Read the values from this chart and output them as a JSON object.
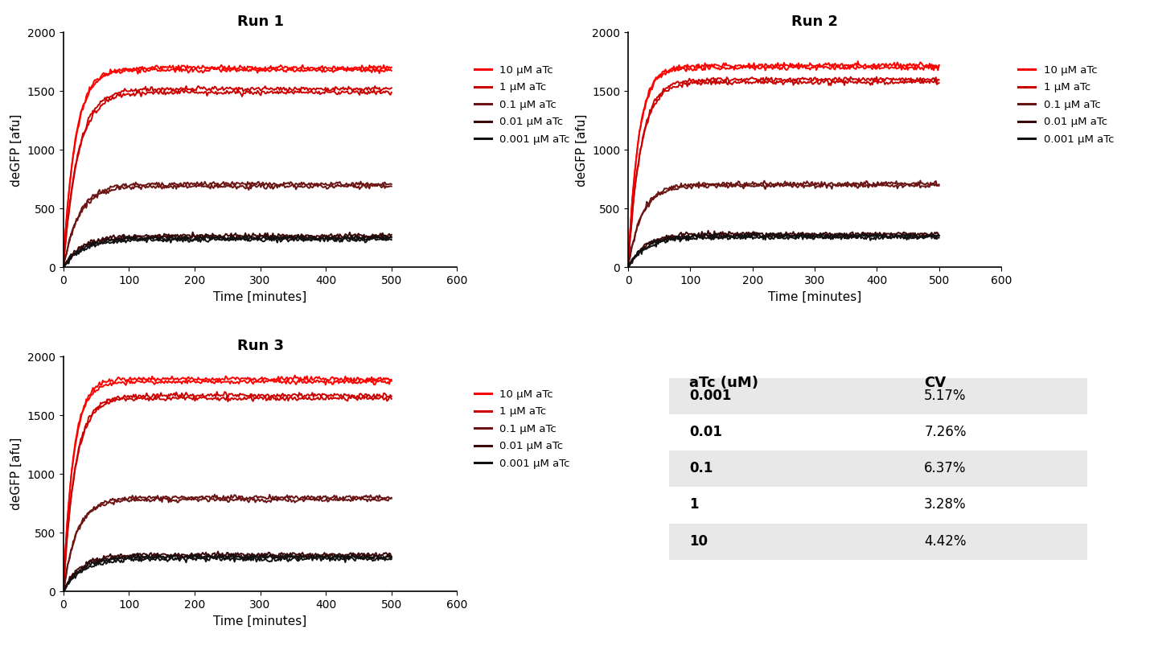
{
  "runs": {
    "Run 1": {
      "concentrations": [
        10,
        1,
        0.1,
        0.01,
        0.001
      ],
      "plateau_high": [
        1700,
        1520,
        710,
        270,
        250
      ],
      "plateau_low": [
        1680,
        1490,
        690,
        255,
        235
      ],
      "rise_k": [
        0.055,
        0.045,
        0.042,
        0.038,
        0.035
      ]
    },
    "Run 2": {
      "concentrations": [
        10,
        1,
        0.1,
        0.01,
        0.001
      ],
      "plateau_high": [
        1720,
        1600,
        710,
        285,
        270
      ],
      "plateau_low": [
        1700,
        1575,
        695,
        268,
        255
      ],
      "rise_k": [
        0.06,
        0.05,
        0.045,
        0.038,
        0.035
      ]
    },
    "Run 3": {
      "concentrations": [
        10,
        1,
        0.1,
        0.01,
        0.001
      ],
      "plateau_high": [
        1810,
        1670,
        800,
        315,
        295
      ],
      "plateau_low": [
        1785,
        1645,
        782,
        298,
        278
      ],
      "rise_k": [
        0.065,
        0.055,
        0.048,
        0.04,
        0.036
      ]
    }
  },
  "colors": [
    "#FF0000",
    "#CC0000",
    "#6B1414",
    "#3A0808",
    "#111111"
  ],
  "legend_labels": [
    "10 μM aTc",
    "1 μM aTc",
    "0.1 μM aTc",
    "0.01 μM aTc",
    "0.001 μM aTc"
  ],
  "xlim": [
    0,
    600
  ],
  "ylim": [
    0,
    2000
  ],
  "xlabel": "Time [minutes]",
  "ylabel": "deGFP [afu]",
  "xticks": [
    0,
    100,
    200,
    300,
    400,
    500,
    600
  ],
  "yticks": [
    0,
    500,
    1000,
    1500,
    2000
  ],
  "table_headers": [
    "aTc (uM)",
    "CV"
  ],
  "table_rows": [
    [
      "0.001",
      "5.17%"
    ],
    [
      "0.01",
      "7.26%"
    ],
    [
      "0.1",
      "6.37%"
    ],
    [
      "1",
      "3.28%"
    ],
    [
      "10",
      "4.42%"
    ]
  ],
  "background_color": "#ffffff",
  "noise_amplitude": 10,
  "time_end": 500,
  "time_points": 300
}
